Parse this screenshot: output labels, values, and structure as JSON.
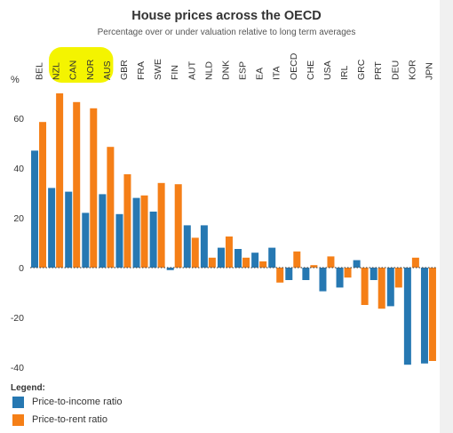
{
  "chart_data": {
    "type": "bar",
    "title": "House prices across the OECD",
    "subtitle": "Percentage over or under valuation relative to long term averages",
    "ylabel": "%",
    "ylim": [
      -43,
      78
    ],
    "yticks": [
      -40,
      -20,
      0,
      20,
      40,
      60
    ],
    "grid": false,
    "highlight_color": "#f4f400",
    "highlighted_categories": [
      "NZL",
      "CAN",
      "NOR",
      "AUS"
    ],
    "categories": [
      "BEL",
      "NZL",
      "CAN",
      "NOR",
      "AUS",
      "GBR",
      "FRA",
      "SWE",
      "FIN",
      "AUT",
      "NLD",
      "DNK",
      "ESP",
      "EA",
      "ITA",
      "OECD",
      "CHE",
      "USA",
      "IRL",
      "GRC",
      "PRT",
      "DEU",
      "KOR",
      "JPN"
    ],
    "series": [
      {
        "name": "Price-to-income ratio",
        "color": "#2678b2",
        "values": [
          47,
          32,
          30.5,
          22,
          29.5,
          21.5,
          28,
          22.5,
          -1,
          17,
          17,
          8,
          7.5,
          6,
          8,
          -5,
          -5,
          -9.5,
          -8,
          3,
          -5,
          -15.5,
          -39,
          -38.5
        ]
      },
      {
        "name": "Price-to-rent ratio",
        "color": "#f57f17",
        "values": [
          58.5,
          70,
          66.5,
          64,
          48.5,
          37.5,
          29,
          34,
          33.5,
          12,
          4,
          12.5,
          4,
          2.5,
          -6,
          6.5,
          1,
          4.5,
          -4,
          -15,
          -16.5,
          -8,
          4,
          -37.5
        ]
      }
    ]
  },
  "legend": {
    "title": "Legend:",
    "items": [
      {
        "label": "Price-to-income ratio",
        "color": "#2678b2"
      },
      {
        "label": "Price-to-rent ratio",
        "color": "#f57f17"
      }
    ]
  }
}
